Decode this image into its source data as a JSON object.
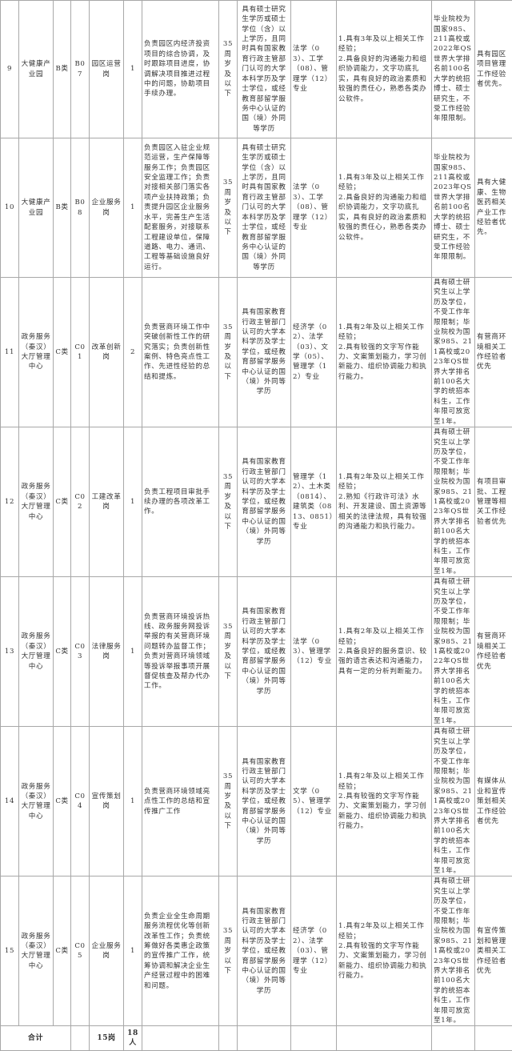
{
  "rows": [
    {
      "no": "9",
      "unit": "大健康产业园",
      "category": "B类",
      "code": "B07",
      "position": "园区运营岗",
      "count": "1",
      "duties": "负责园区内经济投资项目的综合协调，及时跟踪项目进度，协调解决项目推进过程中的问题，协助项目手续办理。",
      "age": "35周岁及以下",
      "education": "具有硕士研究生学历或硕士学位（含）以上学历，且同时具有国家教育行政主管部门认可的大学本科学历及学士学位，或经教育部留学服务中心认证的国（境）外同等学历",
      "major": "法学（03）、工学（08）、管理学（12）专业",
      "other": "1.具有3年及以上相关工作经验；\n2.具备良好的沟通能力和组织协调能力，文字功底扎实，具有良好的政治素质和较强的责任心，熟悉各类办公软件。",
      "school": "毕业院校为国家985、211高校或2022年QS世界大学排名前100名大学的统招博士、硕士研究生，不受工作经验年限限制。",
      "priority": "具有园区项目管理工作经验者优先。"
    },
    {
      "no": "10",
      "unit": "大健康产业园",
      "category": "B类",
      "code": "B08",
      "position": "企业服务岗",
      "count": "1",
      "duties": "负责园区入驻企业规范运营，生产保障等服务工作；负责园区安全监理工作；负责对接相关部门落实各项产业扶持政策；负责提升园区企业服务水平，完善生产生活配套服务，对接联系工程建设单位，保障道路、电力、通讯、工程等基础设施良好运行。",
      "age": "35周岁及以下",
      "education": "具有硕士研究生学历或硕士学位（含）以上学历，且同时具有国家教育行政主管部门认可的大学本科学历及学士学位，或经教育部留学服务中心认证的国（境）外同等学历",
      "major": "法学（03）、工学（08）、管理学（12）专业",
      "other": "1.具有3年及以上相关工作经验；\n2.具备良好的沟通能力和组织协调能力，文字功底扎实，具有良好的政治素质和较强的责任心，熟悉各类办公软件。",
      "school": "毕业院校为国家985、211高校或2023年QS世界大学排名前100名大学的统招博士、硕士研究生，不受工作经验年限限制。",
      "priority": "具有大健康、生物医药相关产业工作经验者优先。"
    },
    {
      "no": "11",
      "unit": "政务服务（秦汉）大厅管理中心",
      "category": "C类",
      "code": "C01",
      "position": "改革创新岗",
      "count": "2",
      "duties": "负责营商环境工作中突破创新性工作的研究落实；负责创新性案例、特色亮点性工作、先进性经验的总结和提炼。",
      "age": "35周岁及以下",
      "education": "具有国家教育行政主管部门认可的大学本科学历及学士学位，或经教育部留学服务中心认证的国（境）外同等学历",
      "major": "经济学（02）、法学（03）、文学（05）、管理学（12）专业",
      "other": "1.具有2年及以上相关工作经验；\n2.具有较强的文字写作能力、文案策划能力，学习创新能力、组织协调能力和执行能力。",
      "school": "具有硕士研究生以上学历及学位，不受工作年限限制；毕业院校为国家985、211高校或2023年QS世界大学排名前100名大学的统招本科生，工作年限可放宽至1年。",
      "priority": "有营商环境相关工作经验者优先"
    },
    {
      "no": "12",
      "unit": "政务服务（秦汉）大厅管理中心",
      "category": "C类",
      "code": "C02",
      "position": "工建改革岗",
      "count": "1",
      "duties": "负责工程项目审批手续办理的各项改革工作。",
      "age": "35周岁及以下",
      "education": "具有国家教育行政主管部门认可的大学本科学历及学士学位，或经教育部留学服务中心认证的国（境）外同等学历",
      "major": "管理学（12）、土木类（0814）、建筑类（0813、0851）专业",
      "other": "1.具有2年及以上相关工作经验；\n2.熟知《行政许可法》水利、开发建设、国土资源等相关的法律法规，具有较强的沟通能力和执行能力。",
      "school": "具有硕士研究生以上学历及学位，不受工作年限限制；毕业院校为国家985、211高校或2023年QS世界大学排名前100名大学的统招本科生，工作年限可放宽至1年。",
      "priority": "有项目审批、工程管理等相关工作经验者优先"
    },
    {
      "no": "13",
      "unit": "政务服务（秦汉）大厅管理中心",
      "category": "C类",
      "code": "C03",
      "position": "法律服务岗",
      "count": "1",
      "duties": "负责营商环境投诉热线、政务服务网投诉举报的有关营商环境问题转办监督工作；负责对营商环境领域等投诉举报事项开展督促核查及帮办代办工作。",
      "age": "35周岁及以下",
      "education": "具有国家教育行政主管部门认可的大学本科学历及学士学位，或经教育部留学服务中心认证的国（境）外同等学历",
      "major": "法学（03）、管理学（12）专业",
      "other": "1.具有2年及以上相关工作经验；\n2.具备良好的服务意识、较强的语言表达和沟通能力，具有一定的分析判断能力。",
      "school": "具有硕士研究生以上学历及学位，不受工作年限限制；毕业院校为国家985、211高校或2022年QS世界大学排名前100名大学的统招本科生，工作年限可放宽至1年。",
      "priority": "有营商环境相关工作经验者优先"
    },
    {
      "no": "14",
      "unit": "政务服务（秦汉）大厅管理中心",
      "category": "C类",
      "code": "C04",
      "position": "宣传策划岗",
      "count": "1",
      "duties": "负责营商环境领域亮点性工作的总结和宣传推广工作",
      "age": "35周岁及以下",
      "education": "具有国家教育行政主管部门认可的大学本科学历及学士学位，或经教育部留学服务中心认证的国（境）外同等学历",
      "major": "文学（05）、管理学（12）专业",
      "other": "1.具有2年及以上相关工作经验；\n2.具有较强的文字写作能力、文案策划能力，学习创新能力、组织协调能力和执行能力。",
      "school": "具有硕士研究生以上学历及学位，不受工作年限限制；毕业院校为国家985、211高校或2023年QS世界大学排名前100名大学的统招本科生，工作年限可放宽至1年。",
      "priority": "有媒体从业和宣传策划相关工作经验者优先"
    },
    {
      "no": "15",
      "unit": "政务服务（秦汉）大厅管理中心",
      "category": "C类",
      "code": "C05",
      "position": "企业服务岗",
      "count": "1",
      "duties": "负责企业全生命周期服务流程优化等创新改革性工作；负责统筹做好各类惠企政策的宣传推广工作，统筹协调和解决企业生产经营过程中的困难和问题。",
      "age": "35周岁以下",
      "education": "具有国家教育行政主管部门认可的大学本科学历及学士学位，或经教育部留学服务中心认证的国（境）外同等学历",
      "major": "经济学（02）、法学（03）、管理学（12）专业",
      "other": "1.具有2年及以上相关工作经验；\n2.具有较强的文字写作能力、文案策划能力，学习创新能力、组织协调能力和执行能力。",
      "school": "具有硕士研究生以上学历及学位，不受工作年限限制；毕业院校为国家985、211高校或2023年QS世界大学排名前100名大学的统招本科生，工作年限可放宽至1年。",
      "priority": "有宣传策划和管理类相关工作经验者优先"
    }
  ],
  "total": {
    "label": "合计",
    "positions": "15岗",
    "people": "18人"
  }
}
